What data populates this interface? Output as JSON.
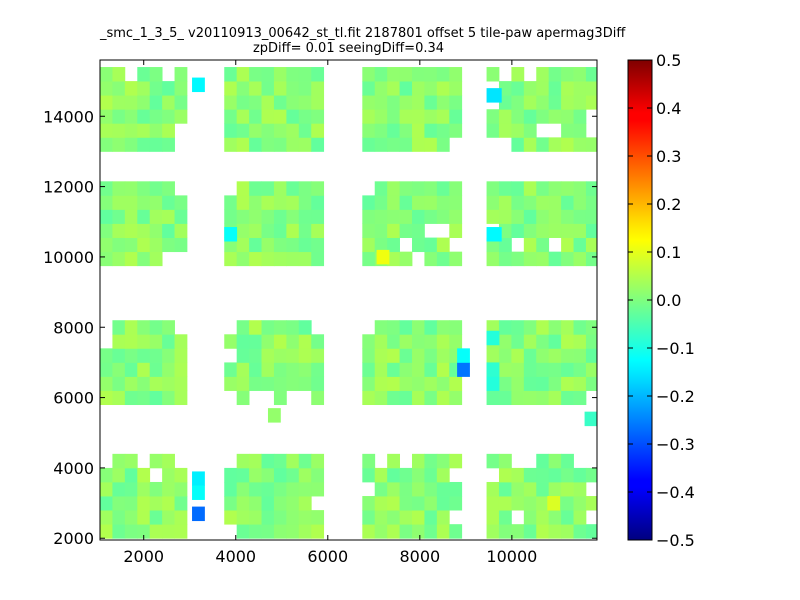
{
  "chart_data": {
    "type": "heatmap",
    "title": "_smc_1_3_5_ v20110913_00642_st_tl.fit 2187801 offset 5 tile-paw apermag3Diff",
    "subtitle": "zpDiff= 0.01 seeingDiff=0.34",
    "xlabel": "",
    "ylabel": "",
    "xlim": [
      1050,
      11850
    ],
    "ylim": [
      1950,
      15600
    ],
    "xticks": [
      2000,
      4000,
      6000,
      8000,
      10000
    ],
    "yticks": [
      2000,
      4000,
      6000,
      8000,
      10000,
      12000,
      14000
    ],
    "colorbar": {
      "colormap": "jet",
      "range": [
        -0.5,
        0.5
      ],
      "ticks": [
        "0.5",
        "0.4",
        "0.3",
        "0.2",
        "0.1",
        "0.0",
        "−0.1",
        "−0.2",
        "−0.3",
        "−0.4",
        "−0.5"
      ]
    },
    "cell_size": [
      270,
      400
    ],
    "grid": false,
    "bands": [
      {
        "y0": 13000,
        "rows": 6
      },
      {
        "y0": 9750,
        "rows": 6
      },
      {
        "y0": 5800,
        "rows": 6
      },
      {
        "y0": 2000,
        "rows": 6
      }
    ],
    "columns": [
      {
        "x0": 1050,
        "cols": 7
      },
      {
        "x0": 3750,
        "cols": 8
      },
      {
        "x0": 6750,
        "cols": 8
      },
      {
        "x0": 9450,
        "cols": 9
      }
    ],
    "missing_cells": [
      [
        0,
        0,
        5,
        2
      ],
      [
        0,
        0,
        5,
        5
      ],
      [
        0,
        0,
        0,
        6
      ],
      [
        0,
        0,
        1,
        6
      ],
      [
        0,
        2,
        0,
        7
      ],
      [
        0,
        3,
        5,
        1
      ],
      [
        0,
        3,
        4,
        0
      ],
      [
        0,
        3,
        3,
        0
      ],
      [
        0,
        3,
        5,
        3
      ],
      [
        0,
        3,
        1,
        4
      ],
      [
        0,
        3,
        1,
        5
      ],
      [
        0,
        3,
        0,
        0
      ],
      [
        0,
        3,
        0,
        1
      ],
      [
        0,
        3,
        1,
        8
      ],
      [
        0,
        3,
        2,
        8
      ],
      [
        1,
        0,
        5,
        6
      ],
      [
        1,
        0,
        0,
        5
      ],
      [
        1,
        0,
        0,
        6
      ],
      [
        1,
        1,
        5,
        0
      ],
      [
        1,
        2,
        5,
        0
      ],
      [
        1,
        2,
        1,
        3
      ],
      [
        1,
        2,
        2,
        5
      ],
      [
        1,
        2,
        2,
        6
      ],
      [
        1,
        2,
        0,
        4
      ],
      [
        1,
        2,
        1,
        7
      ],
      [
        1,
        3,
        2,
        0
      ],
      [
        1,
        3,
        1,
        2
      ],
      [
        1,
        3,
        1,
        5
      ],
      [
        2,
        0,
        5,
        0
      ],
      [
        2,
        0,
        4,
        0
      ],
      [
        2,
        0,
        5,
        6
      ],
      [
        2,
        1,
        3,
        0
      ],
      [
        2,
        1,
        5,
        0
      ],
      [
        2,
        1,
        5,
        7
      ],
      [
        2,
        1,
        0,
        0
      ],
      [
        2,
        1,
        0,
        2
      ],
      [
        2,
        1,
        0,
        3
      ],
      [
        2,
        1,
        0,
        5
      ],
      [
        2,
        1,
        0,
        6
      ],
      [
        2,
        2,
        5,
        0
      ],
      [
        2,
        3,
        0,
        8
      ],
      [
        3,
        0,
        5,
        0
      ],
      [
        3,
        0,
        5,
        3
      ],
      [
        3,
        0,
        5,
        6
      ],
      [
        3,
        0,
        4,
        4
      ],
      [
        3,
        1,
        5,
        0
      ],
      [
        3,
        1,
        2,
        7
      ],
      [
        3,
        1,
        0,
        0
      ],
      [
        3,
        2,
        3,
        0
      ],
      [
        3,
        2,
        5,
        1
      ],
      [
        3,
        2,
        5,
        3
      ],
      [
        3,
        2,
        4,
        7
      ],
      [
        3,
        2,
        1,
        7
      ],
      [
        3,
        3,
        4,
        0
      ],
      [
        3,
        3,
        5,
        2
      ],
      [
        3,
        3,
        5,
        3
      ],
      [
        3,
        3,
        5,
        7
      ],
      [
        3,
        3,
        5,
        8
      ],
      [
        3,
        3,
        3,
        8
      ],
      [
        3,
        3,
        1,
        8
      ],
      [
        3,
        3,
        1,
        2
      ]
    ],
    "special_cells": [
      {
        "x0": 3050,
        "y0": 14700,
        "w": 270,
        "h": 400,
        "value": -0.13
      },
      {
        "x0": 3050,
        "y0": 3500,
        "w": 270,
        "h": 400,
        "value": -0.14
      },
      {
        "x0": 3050,
        "y0": 3100,
        "w": 270,
        "h": 400,
        "value": -0.12
      },
      {
        "x0": 3050,
        "y0": 2500,
        "w": 270,
        "h": 400,
        "value": -0.27
      },
      {
        "x0": 3750,
        "y0": 10450,
        "w": 270,
        "h": 400,
        "value": -0.12
      },
      {
        "x0": 7060,
        "y0": 9800,
        "w": 270,
        "h": 400,
        "value": 0.11
      },
      {
        "x0": 8810,
        "y0": 6600,
        "w": 270,
        "h": 400,
        "value": -0.26
      },
      {
        "x0": 8810,
        "y0": 7000,
        "w": 270,
        "h": 400,
        "value": -0.12
      },
      {
        "x0": 9450,
        "y0": 14400,
        "w": 320,
        "h": 400,
        "value": -0.15
      },
      {
        "x0": 9450,
        "y0": 10450,
        "w": 320,
        "h": 400,
        "value": -0.13
      },
      {
        "x0": 9450,
        "y0": 7500,
        "w": 270,
        "h": 400,
        "value": -0.09
      },
      {
        "x0": 9450,
        "y0": 6200,
        "w": 270,
        "h": 400,
        "value": -0.09
      },
      {
        "x0": 9450,
        "y0": 6600,
        "w": 270,
        "h": 400,
        "value": -0.08
      },
      {
        "x0": 10770,
        "y0": 2800,
        "w": 270,
        "h": 400,
        "value": 0.09
      },
      {
        "x0": 11580,
        "y0": 5200,
        "w": 270,
        "h": 400,
        "value": -0.07
      },
      {
        "x0": 4700,
        "y0": 5300,
        "w": 270,
        "h": 400,
        "value": 0.02
      }
    ]
  }
}
